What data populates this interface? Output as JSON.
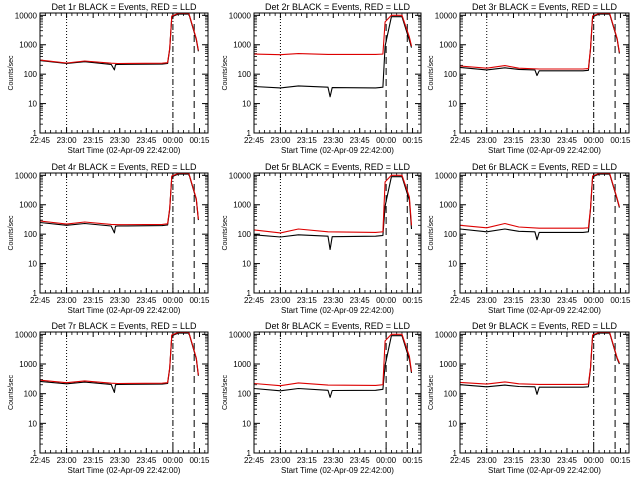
{
  "chart_data": [
    {
      "type": "line",
      "title": "Det 1r BLACK = Events, RED = LLD",
      "xlabel": "Start Time (02-Apr-09 22:42:00)",
      "ylabel": "Counts/sec",
      "yscale": "log",
      "ylim": [
        1,
        12000
      ],
      "xlim": [
        22.75,
        24.33
      ],
      "x_tick_labels": [
        "22:45",
        "23:00",
        "23:15",
        "23:30",
        "23:45",
        "00:00",
        "00:15"
      ],
      "y_tick_labels": [
        "1",
        "10",
        "100",
        "1000",
        "10000"
      ],
      "vlines": [
        {
          "x": 23.0,
          "style": "dotted"
        },
        {
          "x": 24.0,
          "style": "dashdot"
        },
        {
          "x": 24.2,
          "style": "dashed"
        }
      ],
      "series": [
        {
          "color": "#000000",
          "x": [
            22.75,
            23.0,
            23.17,
            23.42,
            23.45,
            23.46,
            23.48,
            23.9,
            23.95,
            23.97,
            23.99,
            24.05,
            24.15,
            24.22,
            24.24
          ],
          "y": [
            290,
            230,
            265,
            215,
            140,
            210,
            215,
            220,
            230,
            700,
            9000,
            11000,
            11000,
            1500,
            600
          ]
        },
        {
          "color": "#dd0000",
          "x": [
            22.75,
            23.0,
            23.17,
            23.42,
            23.48,
            23.9,
            23.95,
            23.97,
            23.99,
            24.05,
            24.15,
            24.22,
            24.24
          ],
          "y": [
            300,
            240,
            280,
            235,
            230,
            235,
            245,
            750,
            9500,
            11500,
            11500,
            1600,
            650
          ]
        }
      ]
    },
    {
      "type": "line",
      "title": "Det 2r BLACK = Events, RED = LLD",
      "xlabel": "Start Time (02-Apr-09 22:42:00)",
      "ylabel": "Counts/sec",
      "yscale": "log",
      "ylim": [
        1,
        12000
      ],
      "xlim": [
        22.75,
        24.33
      ],
      "x_tick_labels": [
        "22:45",
        "23:00",
        "23:15",
        "23:30",
        "23:45",
        "00:00",
        "00:15"
      ],
      "y_tick_labels": [
        "1",
        "10",
        "100",
        "1000",
        "10000"
      ],
      "vlines": [
        {
          "x": 23.0,
          "style": "dotted"
        },
        {
          "x": 24.0,
          "style": "dashed"
        },
        {
          "x": 24.2,
          "style": "dashed"
        }
      ],
      "series": [
        {
          "color": "#000000",
          "x": [
            22.75,
            23.0,
            23.17,
            23.45,
            23.47,
            23.49,
            23.9,
            23.97,
            23.99,
            24.05,
            24.15,
            24.22,
            24.24
          ],
          "y": [
            38,
            34,
            40,
            36,
            17,
            35,
            34,
            36,
            900,
            9000,
            9000,
            1400,
            800
          ]
        },
        {
          "color": "#dd0000",
          "x": [
            22.75,
            23.0,
            23.17,
            23.45,
            23.9,
            23.97,
            23.99,
            24.05,
            24.15,
            24.22,
            24.24
          ],
          "y": [
            480,
            460,
            500,
            470,
            470,
            480,
            6000,
            10000,
            10000,
            1800,
            900
          ]
        }
      ]
    },
    {
      "type": "line",
      "title": "Det 3r BLACK = Events, RED = LLD",
      "xlabel": "Start Time (02-Apr-09 22:42:00)",
      "ylabel": "Counts/sec",
      "yscale": "log",
      "ylim": [
        1,
        12000
      ],
      "xlim": [
        22.75,
        24.33
      ],
      "x_tick_labels": [
        "22:45",
        "23:00",
        "23:15",
        "23:30",
        "23:45",
        "00:00",
        "00:15"
      ],
      "y_tick_labels": [
        "1",
        "10",
        "100",
        "1000",
        "10000"
      ],
      "vlines": [
        {
          "x": 23.0,
          "style": "dotted"
        },
        {
          "x": 24.0,
          "style": "dashdot"
        },
        {
          "x": 24.2,
          "style": "dashed"
        }
      ],
      "series": [
        {
          "color": "#000000",
          "x": [
            22.75,
            23.0,
            23.17,
            23.3,
            23.45,
            23.47,
            23.49,
            23.9,
            23.95,
            23.97,
            23.99,
            24.05,
            24.15,
            24.22,
            24.24
          ],
          "y": [
            170,
            140,
            165,
            145,
            140,
            90,
            130,
            130,
            135,
            700,
            9000,
            11000,
            11000,
            1500,
            500
          ]
        },
        {
          "color": "#dd0000",
          "x": [
            22.75,
            23.0,
            23.17,
            23.3,
            23.49,
            23.9,
            23.95,
            23.97,
            23.99,
            24.05,
            24.15,
            24.22,
            24.24
          ],
          "y": [
            190,
            160,
            195,
            160,
            150,
            150,
            155,
            750,
            9500,
            11500,
            11500,
            1600,
            550
          ]
        }
      ]
    },
    {
      "type": "line",
      "title": "Det 4r BLACK = Events, RED = LLD",
      "xlabel": "Start Time (02-Apr-09 22:42:00)",
      "ylabel": "Counts/sec",
      "yscale": "log",
      "ylim": [
        1,
        12000
      ],
      "xlim": [
        22.75,
        24.33
      ],
      "x_tick_labels": [
        "22:45",
        "23:00",
        "23:15",
        "23:30",
        "23:45",
        "00:00",
        "00:15"
      ],
      "y_tick_labels": [
        "1",
        "10",
        "100",
        "1000",
        "10000"
      ],
      "vlines": [
        {
          "x": 23.0,
          "style": "dotted"
        },
        {
          "x": 24.0,
          "style": "dashdot"
        },
        {
          "x": 24.2,
          "style": "dashed"
        }
      ],
      "series": [
        {
          "color": "#000000",
          "x": [
            22.75,
            23.0,
            23.17,
            23.42,
            23.45,
            23.46,
            23.48,
            23.9,
            23.95,
            23.97,
            23.99,
            24.05,
            24.15,
            24.22,
            24.24
          ],
          "y": [
            250,
            200,
            230,
            190,
            110,
            185,
            190,
            195,
            205,
            700,
            9000,
            11000,
            11000,
            1500,
            300
          ]
        },
        {
          "color": "#dd0000",
          "x": [
            22.75,
            23.0,
            23.17,
            23.42,
            23.48,
            23.9,
            23.95,
            23.97,
            23.99,
            24.05,
            24.15,
            24.22,
            24.24
          ],
          "y": [
            280,
            220,
            260,
            215,
            210,
            215,
            225,
            750,
            9500,
            11500,
            11500,
            1600,
            320
          ]
        }
      ]
    },
    {
      "type": "line",
      "title": "Det 5r BLACK = Events, RED = LLD",
      "xlabel": "Start Time (02-Apr-09 22:42:00)",
      "ylabel": "Counts/sec",
      "yscale": "log",
      "ylim": [
        1,
        12000
      ],
      "xlim": [
        22.75,
        24.33
      ],
      "x_tick_labels": [
        "22:45",
        "23:00",
        "23:15",
        "23:30",
        "23:45",
        "00:00",
        "00:15"
      ],
      "y_tick_labels": [
        "1",
        "10",
        "100",
        "1000",
        "10000"
      ],
      "vlines": [
        {
          "x": 23.0,
          "style": "dotted"
        },
        {
          "x": 24.0,
          "style": "dashed"
        },
        {
          "x": 24.2,
          "style": "dashed"
        }
      ],
      "series": [
        {
          "color": "#000000",
          "x": [
            22.75,
            23.0,
            23.17,
            23.45,
            23.47,
            23.49,
            23.9,
            23.97,
            23.99,
            24.05,
            24.15,
            24.22,
            24.24
          ],
          "y": [
            95,
            80,
            95,
            85,
            30,
            82,
            85,
            90,
            900,
            9000,
            9000,
            1400,
            150
          ]
        },
        {
          "color": "#dd0000",
          "x": [
            22.75,
            23.0,
            23.17,
            23.45,
            23.9,
            23.97,
            23.99,
            24.05,
            24.15,
            24.22,
            24.24
          ],
          "y": [
            140,
            110,
            150,
            120,
            115,
            120,
            6000,
            10000,
            10000,
            1800,
            200
          ]
        }
      ]
    },
    {
      "type": "line",
      "title": "Det 6r BLACK = Events, RED = LLD",
      "xlabel": "Start Time (02-Apr-09 22:42:00)",
      "ylabel": "Counts/sec",
      "yscale": "log",
      "ylim": [
        1,
        12000
      ],
      "xlim": [
        22.75,
        24.33
      ],
      "x_tick_labels": [
        "22:45",
        "23:00",
        "23:15",
        "23:30",
        "23:45",
        "00:00",
        "00:15"
      ],
      "y_tick_labels": [
        "1",
        "10",
        "100",
        "1000",
        "10000"
      ],
      "vlines": [
        {
          "x": 23.0,
          "style": "dotted"
        },
        {
          "x": 24.0,
          "style": "dashdot"
        },
        {
          "x": 24.2,
          "style": "dashed"
        }
      ],
      "series": [
        {
          "color": "#000000",
          "x": [
            22.75,
            23.0,
            23.17,
            23.3,
            23.45,
            23.47,
            23.49,
            23.9,
            23.95,
            23.97,
            23.99,
            24.05,
            24.15,
            24.22,
            24.24
          ],
          "y": [
            150,
            120,
            150,
            125,
            120,
            65,
            115,
            115,
            120,
            700,
            9000,
            11000,
            11000,
            1500,
            800
          ]
        },
        {
          "color": "#dd0000",
          "x": [
            22.75,
            23.0,
            23.17,
            23.3,
            23.49,
            23.9,
            23.95,
            23.97,
            23.99,
            24.05,
            24.15,
            24.22,
            24.24
          ],
          "y": [
            200,
            165,
            230,
            175,
            160,
            160,
            165,
            750,
            9500,
            11500,
            11500,
            1600,
            850
          ]
        }
      ]
    },
    {
      "type": "line",
      "title": "Det 7r BLACK = Events, RED = LLD",
      "xlabel": "Start Time (02-Apr-09 22:42:00)",
      "ylabel": "Counts/sec",
      "yscale": "log",
      "ylim": [
        1,
        12000
      ],
      "xlim": [
        22.75,
        24.33
      ],
      "x_tick_labels": [
        "22:45",
        "23:00",
        "23:15",
        "23:30",
        "23:45",
        "00:00",
        "00:15"
      ],
      "y_tick_labels": [
        "1",
        "10",
        "100",
        "1000",
        "10000"
      ],
      "vlines": [
        {
          "x": 23.0,
          "style": "dotted"
        },
        {
          "x": 24.0,
          "style": "dashdot"
        },
        {
          "x": 24.2,
          "style": "dashed"
        }
      ],
      "series": [
        {
          "color": "#000000",
          "x": [
            22.75,
            23.0,
            23.17,
            23.42,
            23.45,
            23.46,
            23.48,
            23.9,
            23.95,
            23.97,
            23.99,
            24.05,
            24.15,
            24.22,
            24.24
          ],
          "y": [
            260,
            215,
            245,
            205,
            110,
            200,
            205,
            210,
            220,
            700,
            9000,
            11000,
            11000,
            1500,
            400
          ]
        },
        {
          "color": "#dd0000",
          "x": [
            22.75,
            23.0,
            23.17,
            23.42,
            23.48,
            23.9,
            23.95,
            23.97,
            23.99,
            24.05,
            24.15,
            24.22,
            24.24
          ],
          "y": [
            285,
            235,
            270,
            225,
            220,
            225,
            235,
            750,
            9500,
            11500,
            11500,
            1600,
            420
          ]
        }
      ]
    },
    {
      "type": "line",
      "title": "Det 8r BLACK = Events, RED = LLD",
      "xlabel": "Start Time (02-Apr-09 22:42:00)",
      "ylabel": "Counts/sec",
      "yscale": "log",
      "ylim": [
        1,
        12000
      ],
      "xlim": [
        22.75,
        24.33
      ],
      "x_tick_labels": [
        "22:45",
        "23:00",
        "23:15",
        "23:30",
        "23:45",
        "00:00",
        "00:15"
      ],
      "y_tick_labels": [
        "1",
        "10",
        "100",
        "1000",
        "10000"
      ],
      "vlines": [
        {
          "x": 23.0,
          "style": "dotted"
        },
        {
          "x": 24.0,
          "style": "dashed"
        },
        {
          "x": 24.2,
          "style": "dashed"
        }
      ],
      "series": [
        {
          "color": "#000000",
          "x": [
            22.75,
            23.0,
            23.17,
            23.45,
            23.47,
            23.49,
            23.9,
            23.97,
            23.99,
            24.05,
            24.15,
            24.22,
            24.24
          ],
          "y": [
            150,
            125,
            150,
            130,
            75,
            128,
            130,
            140,
            900,
            9000,
            9000,
            1400,
            500
          ]
        },
        {
          "color": "#dd0000",
          "x": [
            22.75,
            23.0,
            23.17,
            23.45,
            23.9,
            23.97,
            23.99,
            24.05,
            24.15,
            24.22,
            24.24
          ],
          "y": [
            220,
            185,
            230,
            195,
            190,
            200,
            6000,
            10000,
            10000,
            1800,
            550
          ]
        }
      ]
    },
    {
      "type": "line",
      "title": "Det 9r BLACK = Events, RED = LLD",
      "xlabel": "Start Time (02-Apr-09 22:42:00)",
      "ylabel": "Counts/sec",
      "yscale": "log",
      "ylim": [
        1,
        12000
      ],
      "xlim": [
        22.75,
        24.33
      ],
      "x_tick_labels": [
        "22:45",
        "23:00",
        "23:15",
        "23:30",
        "23:45",
        "00:00",
        "00:15"
      ],
      "y_tick_labels": [
        "1",
        "10",
        "100",
        "1000",
        "10000"
      ],
      "vlines": [
        {
          "x": 23.0,
          "style": "dotted"
        },
        {
          "x": 24.0,
          "style": "dashdot"
        },
        {
          "x": 24.2,
          "style": "dashed"
        }
      ],
      "series": [
        {
          "color": "#000000",
          "x": [
            22.75,
            23.0,
            23.17,
            23.3,
            23.45,
            23.47,
            23.49,
            23.9,
            23.95,
            23.97,
            23.99,
            24.05,
            24.15,
            24.22,
            24.24
          ],
          "y": [
            200,
            170,
            195,
            175,
            170,
            95,
            165,
            165,
            170,
            700,
            9000,
            11000,
            11000,
            1500,
            1000
          ]
        },
        {
          "color": "#dd0000",
          "x": [
            22.75,
            23.0,
            23.17,
            23.3,
            23.49,
            23.9,
            23.95,
            23.97,
            23.99,
            24.05,
            24.15,
            24.22,
            24.24
          ],
          "y": [
            240,
            210,
            250,
            215,
            205,
            205,
            210,
            750,
            9500,
            11500,
            11500,
            1600,
            1100
          ]
        }
      ]
    }
  ]
}
